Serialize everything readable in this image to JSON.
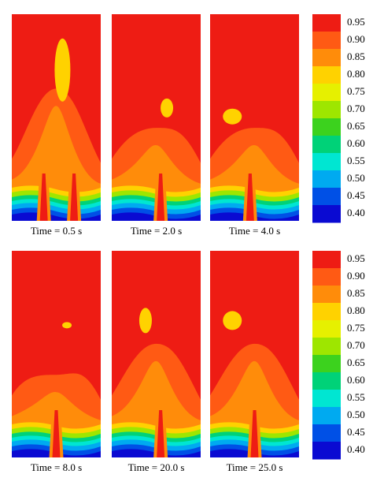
{
  "chart_data": [
    {
      "type": "contour",
      "panels": [
        {
          "label": "Time = 0.5 s"
        },
        {
          "label": "Time = 2.0 s"
        },
        {
          "label": "Time = 4.0 s"
        }
      ],
      "colorbar": {
        "ticks": [
          {
            "value": 0.95,
            "label": "0.95"
          },
          {
            "value": 0.9,
            "label": "0.90"
          },
          {
            "value": 0.85,
            "label": "0.85"
          },
          {
            "value": 0.8,
            "label": "0.80"
          },
          {
            "value": 0.75,
            "label": "0.75"
          },
          {
            "value": 0.7,
            "label": "0.70"
          },
          {
            "value": 0.65,
            "label": "0.65"
          },
          {
            "value": 0.6,
            "label": "0.60"
          },
          {
            "value": 0.55,
            "label": "0.55"
          },
          {
            "value": 0.5,
            "label": "0.50"
          },
          {
            "value": 0.45,
            "label": "0.45"
          },
          {
            "value": 0.4,
            "label": "0.40"
          }
        ],
        "colors": [
          "#ee1c14",
          "#ff5a14",
          "#ff8c0a",
          "#ffd200",
          "#e6f000",
          "#9ee600",
          "#3cd21e",
          "#00d278",
          "#00e6d2",
          "#00aaf0",
          "#0050e6",
          "#0a0ad2"
        ]
      }
    },
    {
      "type": "contour",
      "panels": [
        {
          "label": "Time = 8.0 s"
        },
        {
          "label": "Time = 20.0 s"
        },
        {
          "label": "Time = 25.0 s"
        }
      ],
      "colorbar": {
        "ticks": [
          {
            "value": 0.95,
            "label": "0.95"
          },
          {
            "value": 0.9,
            "label": "0.90"
          },
          {
            "value": 0.85,
            "label": "0.85"
          },
          {
            "value": 0.8,
            "label": "0.80"
          },
          {
            "value": 0.75,
            "label": "0.75"
          },
          {
            "value": 0.7,
            "label": "0.70"
          },
          {
            "value": 0.65,
            "label": "0.65"
          },
          {
            "value": 0.6,
            "label": "0.60"
          },
          {
            "value": 0.55,
            "label": "0.55"
          },
          {
            "value": 0.5,
            "label": "0.50"
          },
          {
            "value": 0.45,
            "label": "0.45"
          },
          {
            "value": 0.4,
            "label": "0.40"
          }
        ],
        "colors": [
          "#ee1c14",
          "#ff5a14",
          "#ff8c0a",
          "#ffd200",
          "#e6f000",
          "#9ee600",
          "#3cd21e",
          "#00d278",
          "#00e6d2",
          "#00aaf0",
          "#0050e6",
          "#0a0ad2"
        ]
      }
    }
  ]
}
